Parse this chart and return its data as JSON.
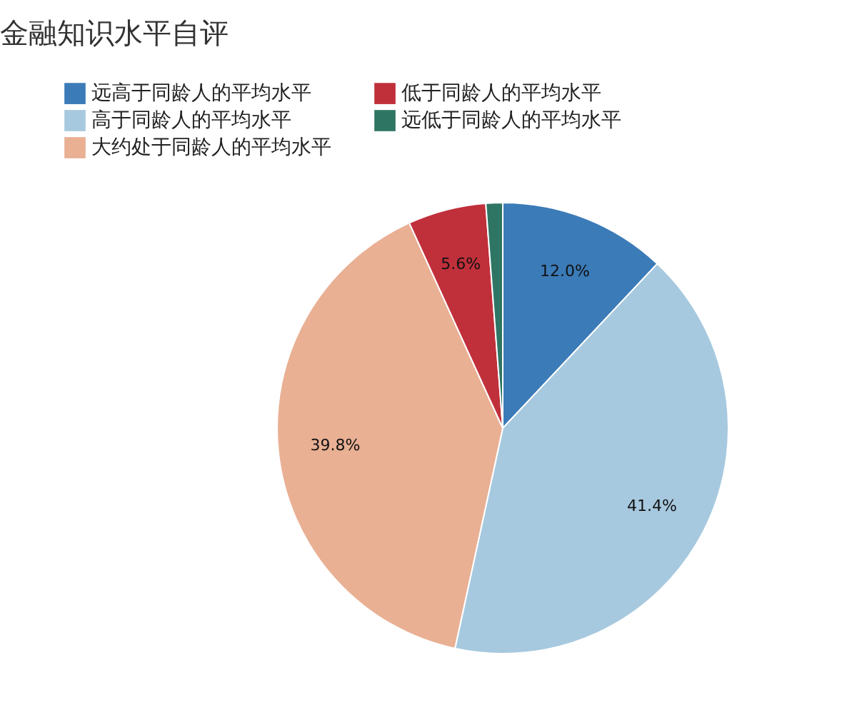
{
  "chart_data": {
    "type": "pie",
    "title": "金融知识水平自评",
    "categories": [
      "远高于同龄人的平均水平",
      "高于同龄人的平均水平",
      "大约处于同龄人的平均水平",
      "低于同龄人的平均水平",
      "远低于同龄人的平均水平"
    ],
    "values": [
      12.0,
      41.4,
      39.8,
      5.6,
      1.2
    ],
    "colors": [
      "#3b7bb8",
      "#a7c9df",
      "#e9b094",
      "#c0303b",
      "#2f7564"
    ],
    "value_labels": [
      "12.0%",
      "41.4%",
      "39.8%",
      "5.6%",
      null
    ],
    "legend": "top left"
  }
}
